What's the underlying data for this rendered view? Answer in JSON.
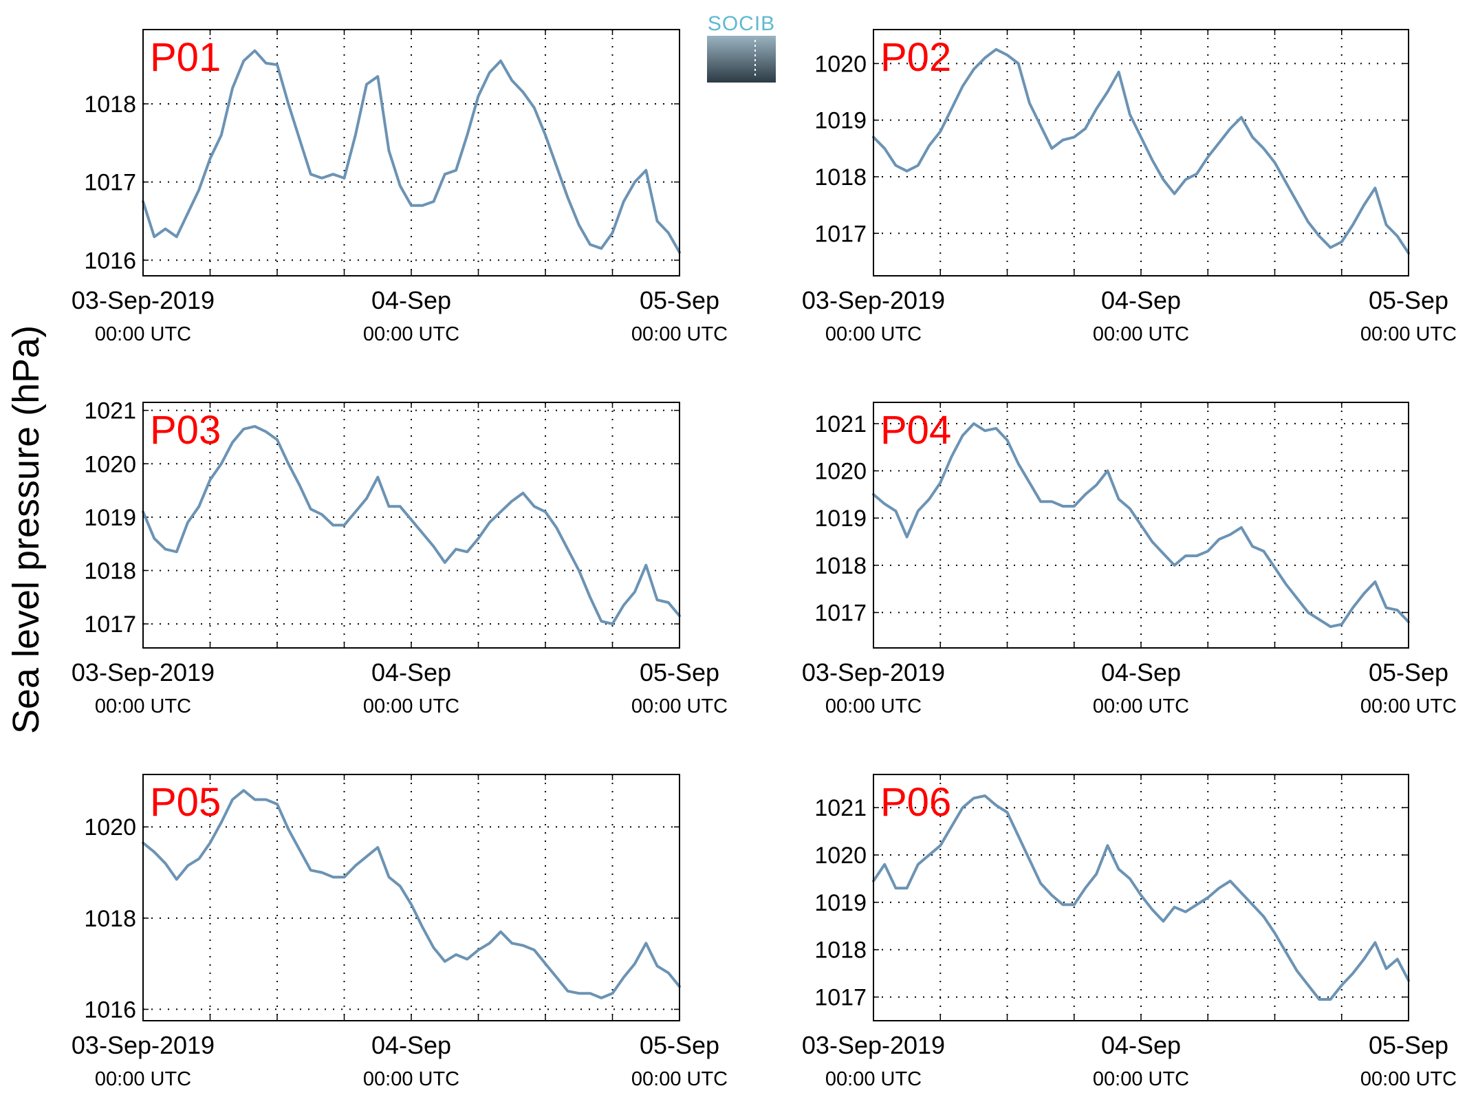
{
  "figure": {
    "ylabel": "Sea level pressure (hPa)",
    "logo_text": "SOCIB",
    "colors": {
      "line": "#6b93b4",
      "title": "#ff0000",
      "grid": "#000000",
      "logo_top": "#9ab3c0",
      "logo_bottom": "#2c3b45",
      "logo_text": "#5fb9d2"
    }
  },
  "chart_data": [
    {
      "type": "line",
      "title": "P01",
      "x_ticks": [
        {
          "date": "03-Sep-2019",
          "time": "00:00 UTC"
        },
        {
          "date": "04-Sep",
          "time": "00:00 UTC"
        },
        {
          "date": "05-Sep",
          "time": "00:00 UTC"
        }
      ],
      "xlim_hours": [
        0,
        48
      ],
      "ylim": [
        1015.8,
        1018.95
      ],
      "yticks": [
        1016,
        1017,
        1018
      ],
      "grid": true,
      "series": [
        {
          "x_hours": [
            0,
            1,
            2,
            3,
            4,
            5,
            6,
            7,
            8,
            9,
            10,
            11,
            12,
            13,
            14,
            15,
            16,
            17,
            18,
            19,
            20,
            21,
            22,
            23,
            24,
            25,
            26,
            27,
            28,
            29,
            30,
            31,
            32,
            33,
            34,
            35,
            36,
            37,
            38,
            39,
            40,
            41,
            42,
            43,
            44,
            45,
            46,
            47,
            48
          ],
          "y": [
            1016.75,
            1016.3,
            1016.4,
            1016.3,
            1016.6,
            1016.9,
            1017.3,
            1017.6,
            1018.2,
            1018.55,
            1018.68,
            1018.52,
            1018.5,
            1018.0,
            1017.55,
            1017.1,
            1017.05,
            1017.1,
            1017.05,
            1017.6,
            1018.25,
            1018.35,
            1017.4,
            1016.95,
            1016.7,
            1016.7,
            1016.75,
            1017.1,
            1017.15,
            1017.6,
            1018.1,
            1018.4,
            1018.55,
            1018.3,
            1018.15,
            1017.95,
            1017.6,
            1017.2,
            1016.8,
            1016.45,
            1016.2,
            1016.15,
            1016.35,
            1016.75,
            1017.0,
            1017.15,
            1016.5,
            1016.35,
            1016.1
          ]
        }
      ]
    },
    {
      "type": "line",
      "title": "P02",
      "x_ticks": [
        {
          "date": "03-Sep-2019",
          "time": "00:00 UTC"
        },
        {
          "date": "04-Sep",
          "time": "00:00 UTC"
        },
        {
          "date": "05-Sep",
          "time": "00:00 UTC"
        }
      ],
      "xlim_hours": [
        0,
        48
      ],
      "ylim": [
        1016.25,
        1020.6
      ],
      "yticks": [
        1017,
        1018,
        1019,
        1020
      ],
      "grid": true,
      "series": [
        {
          "x_hours": [
            0,
            1,
            2,
            3,
            4,
            5,
            6,
            7,
            8,
            9,
            10,
            11,
            12,
            13,
            14,
            15,
            16,
            17,
            18,
            19,
            20,
            21,
            22,
            23,
            24,
            25,
            26,
            27,
            28,
            29,
            30,
            31,
            32,
            33,
            34,
            35,
            36,
            37,
            38,
            39,
            40,
            41,
            42,
            43,
            44,
            45,
            46,
            47,
            48
          ],
          "y": [
            1018.7,
            1018.5,
            1018.2,
            1018.1,
            1018.2,
            1018.55,
            1018.8,
            1019.2,
            1019.6,
            1019.9,
            1020.1,
            1020.25,
            1020.15,
            1020.0,
            1019.3,
            1018.9,
            1018.5,
            1018.65,
            1018.7,
            1018.85,
            1019.2,
            1019.5,
            1019.85,
            1019.1,
            1018.7,
            1018.3,
            1017.95,
            1017.7,
            1017.95,
            1018.05,
            1018.35,
            1018.6,
            1018.85,
            1019.05,
            1018.7,
            1018.5,
            1018.25,
            1017.9,
            1017.55,
            1017.2,
            1016.95,
            1016.75,
            1016.85,
            1017.15,
            1017.5,
            1017.8,
            1017.15,
            1016.95,
            1016.65
          ]
        }
      ]
    },
    {
      "type": "line",
      "title": "P03",
      "x_ticks": [
        {
          "date": "03-Sep-2019",
          "time": "00:00 UTC"
        },
        {
          "date": "04-Sep",
          "time": "00:00 UTC"
        },
        {
          "date": "05-Sep",
          "time": "00:00 UTC"
        }
      ],
      "xlim_hours": [
        0,
        48
      ],
      "ylim": [
        1016.55,
        1021.15
      ],
      "yticks": [
        1017,
        1018,
        1019,
        1020,
        1021
      ],
      "grid": true,
      "series": [
        {
          "x_hours": [
            0,
            1,
            2,
            3,
            4,
            5,
            6,
            7,
            8,
            9,
            10,
            11,
            12,
            13,
            14,
            15,
            16,
            17,
            18,
            19,
            20,
            21,
            22,
            23,
            24,
            25,
            26,
            27,
            28,
            29,
            30,
            31,
            32,
            33,
            34,
            35,
            36,
            37,
            38,
            39,
            40,
            41,
            42,
            43,
            44,
            45,
            46,
            47,
            48
          ],
          "y": [
            1019.1,
            1018.6,
            1018.4,
            1018.35,
            1018.9,
            1019.2,
            1019.7,
            1020.0,
            1020.4,
            1020.65,
            1020.7,
            1020.6,
            1020.45,
            1020.0,
            1019.6,
            1019.15,
            1019.05,
            1018.85,
            1018.85,
            1019.1,
            1019.35,
            1019.75,
            1019.2,
            1019.2,
            1018.95,
            1018.7,
            1018.45,
            1018.15,
            1018.4,
            1018.35,
            1018.6,
            1018.9,
            1019.1,
            1019.3,
            1019.45,
            1019.2,
            1019.1,
            1018.8,
            1018.4,
            1018.0,
            1017.5,
            1017.05,
            1017.0,
            1017.35,
            1017.6,
            1018.1,
            1017.45,
            1017.4,
            1017.15
          ]
        }
      ]
    },
    {
      "type": "line",
      "title": "P04",
      "x_ticks": [
        {
          "date": "03-Sep-2019",
          "time": "00:00 UTC"
        },
        {
          "date": "04-Sep",
          "time": "00:00 UTC"
        },
        {
          "date": "05-Sep",
          "time": "00:00 UTC"
        }
      ],
      "xlim_hours": [
        0,
        48
      ],
      "ylim": [
        1016.25,
        1021.45
      ],
      "yticks": [
        1017,
        1018,
        1019,
        1020,
        1021
      ],
      "grid": true,
      "series": [
        {
          "x_hours": [
            0,
            1,
            2,
            3,
            4,
            5,
            6,
            7,
            8,
            9,
            10,
            11,
            12,
            13,
            14,
            15,
            16,
            17,
            18,
            19,
            20,
            21,
            22,
            23,
            24,
            25,
            26,
            27,
            28,
            29,
            30,
            31,
            32,
            33,
            34,
            35,
            36,
            37,
            38,
            39,
            40,
            41,
            42,
            43,
            44,
            45,
            46,
            47,
            48
          ],
          "y": [
            1019.5,
            1019.3,
            1019.15,
            1018.6,
            1019.15,
            1019.4,
            1019.75,
            1020.3,
            1020.75,
            1021.0,
            1020.85,
            1020.9,
            1020.65,
            1020.15,
            1019.75,
            1019.35,
            1019.35,
            1019.25,
            1019.25,
            1019.5,
            1019.7,
            1020.0,
            1019.4,
            1019.2,
            1018.85,
            1018.5,
            1018.25,
            1018.0,
            1018.2,
            1018.2,
            1018.3,
            1018.55,
            1018.65,
            1018.8,
            1018.4,
            1018.3,
            1017.95,
            1017.6,
            1017.3,
            1017.0,
            1016.85,
            1016.7,
            1016.75,
            1017.1,
            1017.4,
            1017.65,
            1017.1,
            1017.05,
            1016.8
          ]
        }
      ]
    },
    {
      "type": "line",
      "title": "P05",
      "x_ticks": [
        {
          "date": "03-Sep-2019",
          "time": "00:00 UTC"
        },
        {
          "date": "04-Sep",
          "time": "00:00 UTC"
        },
        {
          "date": "05-Sep",
          "time": "00:00 UTC"
        }
      ],
      "xlim_hours": [
        0,
        48
      ],
      "ylim": [
        1015.75,
        1021.15
      ],
      "yticks": [
        1016,
        1018,
        1020
      ],
      "grid": true,
      "series": [
        {
          "x_hours": [
            0,
            1,
            2,
            3,
            4,
            5,
            6,
            7,
            8,
            9,
            10,
            11,
            12,
            13,
            14,
            15,
            16,
            17,
            18,
            19,
            20,
            21,
            22,
            23,
            24,
            25,
            26,
            27,
            28,
            29,
            30,
            31,
            32,
            33,
            34,
            35,
            36,
            37,
            38,
            39,
            40,
            41,
            42,
            43,
            44,
            45,
            46,
            47,
            48
          ],
          "y": [
            1019.65,
            1019.45,
            1019.2,
            1018.85,
            1019.15,
            1019.3,
            1019.65,
            1020.1,
            1020.6,
            1020.8,
            1020.6,
            1020.6,
            1020.5,
            1019.95,
            1019.5,
            1019.05,
            1019.0,
            1018.9,
            1018.9,
            1019.15,
            1019.35,
            1019.55,
            1018.9,
            1018.7,
            1018.3,
            1017.8,
            1017.35,
            1017.05,
            1017.2,
            1017.1,
            1017.3,
            1017.45,
            1017.7,
            1017.45,
            1017.4,
            1017.3,
            1017.0,
            1016.7,
            1016.4,
            1016.35,
            1016.35,
            1016.25,
            1016.35,
            1016.7,
            1017.0,
            1017.45,
            1016.95,
            1016.8,
            1016.5
          ]
        }
      ]
    },
    {
      "type": "line",
      "title": "P06",
      "x_ticks": [
        {
          "date": "03-Sep-2019",
          "time": "00:00 UTC"
        },
        {
          "date": "04-Sep",
          "time": "00:00 UTC"
        },
        {
          "date": "05-Sep",
          "time": "00:00 UTC"
        }
      ],
      "xlim_hours": [
        0,
        48
      ],
      "ylim": [
        1016.5,
        1021.7
      ],
      "yticks": [
        1017,
        1018,
        1019,
        1020,
        1021
      ],
      "grid": true,
      "series": [
        {
          "x_hours": [
            0,
            1,
            2,
            3,
            4,
            5,
            6,
            7,
            8,
            9,
            10,
            11,
            12,
            13,
            14,
            15,
            16,
            17,
            18,
            19,
            20,
            21,
            22,
            23,
            24,
            25,
            26,
            27,
            28,
            29,
            30,
            31,
            32,
            33,
            34,
            35,
            36,
            37,
            38,
            39,
            40,
            41,
            42,
            43,
            44,
            45,
            46,
            47,
            48
          ],
          "y": [
            1019.45,
            1019.8,
            1019.3,
            1019.3,
            1019.8,
            1020.0,
            1020.2,
            1020.6,
            1021.0,
            1021.2,
            1021.25,
            1021.05,
            1020.9,
            1020.4,
            1019.9,
            1019.4,
            1019.15,
            1018.95,
            1018.95,
            1019.3,
            1019.6,
            1020.2,
            1019.7,
            1019.5,
            1019.15,
            1018.85,
            1018.6,
            1018.9,
            1018.8,
            1018.95,
            1019.1,
            1019.3,
            1019.45,
            1019.2,
            1018.95,
            1018.7,
            1018.35,
            1017.95,
            1017.55,
            1017.25,
            1016.95,
            1016.95,
            1017.25,
            1017.5,
            1017.8,
            1018.15,
            1017.6,
            1017.8,
            1017.35
          ]
        }
      ]
    }
  ]
}
